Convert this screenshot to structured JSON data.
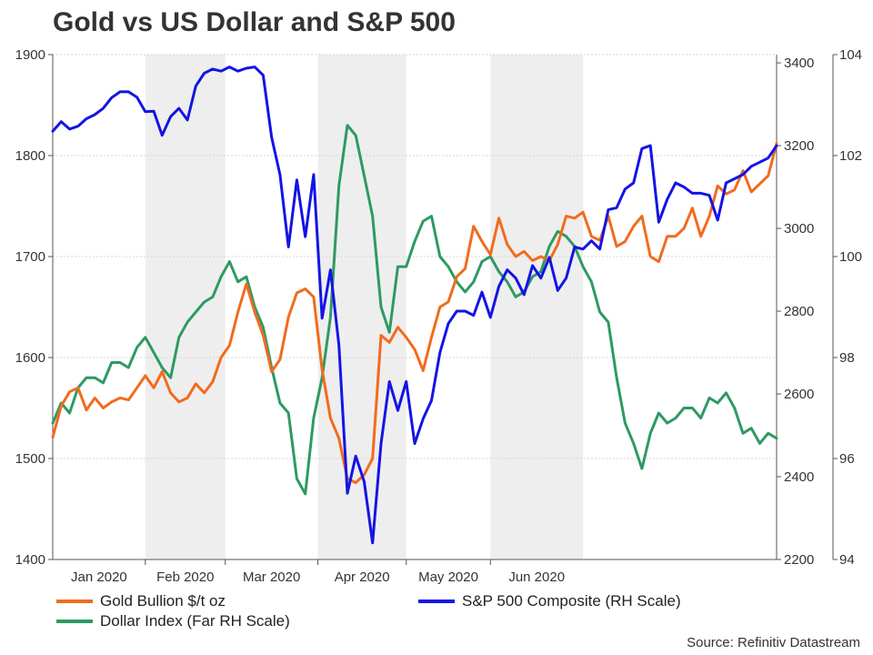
{
  "title": "Gold vs US Dollar and S&P 500",
  "source": "Source: Refinitiv Datastream",
  "colors": {
    "gold": "#f26b1d",
    "sp500": "#1414e6",
    "dollar": "#2e9a62",
    "shade": "#eeeeee",
    "grid": "#d6d6d6",
    "axis": "#555555"
  },
  "legend": [
    {
      "label": "Gold Bullion $/t oz",
      "series": "gold"
    },
    {
      "label": "S&P 500 Composite (RH Scale)",
      "series": "sp500"
    },
    {
      "label": "Dollar Index (Far RH Scale)",
      "series": "dollar"
    }
  ],
  "chart_data": {
    "type": "line",
    "x_unit": "trading day index (Jan 2 2020 = 0, Jun 30 2020 = 124)",
    "months": [
      "Jan 2020",
      "Feb 2020",
      "Mar 2020",
      "Apr 2020",
      "May 2020",
      "Jun 2020"
    ],
    "shaded_months": [
      "Feb 2020",
      "Apr 2020",
      "Jun 2020"
    ],
    "axes": {
      "left": {
        "min": 1400,
        "max": 1900,
        "ticks": [
          1400,
          1500,
          1600,
          1700,
          1800,
          1900
        ]
      },
      "right": {
        "min": 2200,
        "max": 3420,
        "ticks": [
          2200,
          2400,
          2600,
          2800,
          3000,
          3200,
          3400
        ]
      },
      "far_right": {
        "min": 94,
        "max": 104,
        "ticks": [
          94,
          96,
          98,
          100,
          102,
          104
        ]
      }
    },
    "grid": true,
    "series": [
      {
        "key": "gold",
        "name": "Gold Bullion $/t oz",
        "axis": "left",
        "values": [
          [
            0,
            1521
          ],
          [
            2,
            1552
          ],
          [
            4,
            1566
          ],
          [
            6,
            1570
          ],
          [
            8,
            1548
          ],
          [
            10,
            1560
          ],
          [
            12,
            1550
          ],
          [
            14,
            1556
          ],
          [
            16,
            1560
          ],
          [
            18,
            1558
          ],
          [
            20,
            1570
          ],
          [
            22,
            1582
          ],
          [
            24,
            1570
          ],
          [
            26,
            1586
          ],
          [
            28,
            1565
          ],
          [
            30,
            1556
          ],
          [
            32,
            1560
          ],
          [
            34,
            1574
          ],
          [
            36,
            1565
          ],
          [
            38,
            1576
          ],
          [
            40,
            1600
          ],
          [
            42,
            1612
          ],
          [
            44,
            1645
          ],
          [
            46,
            1673
          ],
          [
            48,
            1645
          ],
          [
            50,
            1622
          ],
          [
            52,
            1586
          ],
          [
            54,
            1598
          ],
          [
            56,
            1640
          ],
          [
            58,
            1664
          ],
          [
            60,
            1668
          ],
          [
            62,
            1660
          ],
          [
            64,
            1588
          ],
          [
            66,
            1540
          ],
          [
            68,
            1520
          ],
          [
            70,
            1480
          ],
          [
            72,
            1476
          ],
          [
            74,
            1484
          ],
          [
            76,
            1500
          ],
          [
            78,
            1622
          ],
          [
            80,
            1615
          ],
          [
            82,
            1630
          ],
          [
            84,
            1620
          ],
          [
            86,
            1608
          ],
          [
            88,
            1587
          ],
          [
            90,
            1620
          ],
          [
            92,
            1650
          ],
          [
            94,
            1655
          ],
          [
            96,
            1680
          ],
          [
            98,
            1688
          ],
          [
            100,
            1730
          ],
          [
            102,
            1715
          ],
          [
            104,
            1702
          ],
          [
            106,
            1738
          ],
          [
            108,
            1712
          ],
          [
            110,
            1700
          ],
          [
            112,
            1705
          ],
          [
            114,
            1696
          ],
          [
            116,
            1700
          ],
          [
            118,
            1696
          ],
          [
            120,
            1712
          ],
          [
            122,
            1740
          ],
          [
            124,
            1738
          ],
          [
            126,
            1744
          ],
          [
            128,
            1720
          ],
          [
            130,
            1716
          ],
          [
            132,
            1740
          ],
          [
            134,
            1710
          ],
          [
            136,
            1715
          ],
          [
            138,
            1730
          ],
          [
            140,
            1740
          ],
          [
            142,
            1700
          ],
          [
            144,
            1695
          ],
          [
            146,
            1720
          ],
          [
            148,
            1720
          ],
          [
            150,
            1728
          ],
          [
            152,
            1748
          ],
          [
            154,
            1720
          ],
          [
            156,
            1740
          ],
          [
            158,
            1770
          ],
          [
            160,
            1762
          ],
          [
            162,
            1766
          ],
          [
            164,
            1785
          ],
          [
            166,
            1764
          ],
          [
            168,
            1772
          ],
          [
            170,
            1780
          ],
          [
            172,
            1812
          ]
        ]
      },
      {
        "key": "sp500",
        "name": "S&P 500 Composite (RH Scale)",
        "axis": "right",
        "values": [
          [
            0,
            3235
          ],
          [
            2,
            3258
          ],
          [
            4,
            3240
          ],
          [
            6,
            3247
          ],
          [
            8,
            3265
          ],
          [
            10,
            3275
          ],
          [
            12,
            3290
          ],
          [
            14,
            3316
          ],
          [
            16,
            3330
          ],
          [
            18,
            3330
          ],
          [
            20,
            3317
          ],
          [
            22,
            3282
          ],
          [
            24,
            3283
          ],
          [
            26,
            3225
          ],
          [
            28,
            3270
          ],
          [
            30,
            3290
          ],
          [
            32,
            3262
          ],
          [
            34,
            3344
          ],
          [
            36,
            3375
          ],
          [
            38,
            3385
          ],
          [
            40,
            3380
          ],
          [
            42,
            3390
          ],
          [
            44,
            3380
          ],
          [
            46,
            3387
          ],
          [
            48,
            3390
          ],
          [
            50,
            3370
          ],
          [
            52,
            3220
          ],
          [
            54,
            3130
          ],
          [
            56,
            2955
          ],
          [
            58,
            3117
          ],
          [
            60,
            2980
          ],
          [
            62,
            3130
          ],
          [
            64,
            2783
          ],
          [
            66,
            2900
          ],
          [
            68,
            2718
          ],
          [
            70,
            2360
          ],
          [
            72,
            2450
          ],
          [
            74,
            2388
          ],
          [
            76,
            2240
          ],
          [
            78,
            2480
          ],
          [
            80,
            2630
          ],
          [
            82,
            2560
          ],
          [
            84,
            2630
          ],
          [
            86,
            2480
          ],
          [
            88,
            2540
          ],
          [
            90,
            2584
          ],
          [
            92,
            2700
          ],
          [
            94,
            2770
          ],
          [
            96,
            2800
          ],
          [
            98,
            2800
          ],
          [
            100,
            2790
          ],
          [
            102,
            2846
          ],
          [
            104,
            2785
          ],
          [
            106,
            2860
          ],
          [
            108,
            2900
          ],
          [
            110,
            2880
          ],
          [
            112,
            2840
          ],
          [
            114,
            2910
          ],
          [
            116,
            2880
          ],
          [
            118,
            2930
          ],
          [
            120,
            2850
          ],
          [
            122,
            2880
          ],
          [
            124,
            2955
          ],
          [
            126,
            2950
          ],
          [
            128,
            2970
          ],
          [
            130,
            2950
          ],
          [
            132,
            3045
          ],
          [
            134,
            3050
          ],
          [
            136,
            3095
          ],
          [
            138,
            3110
          ],
          [
            140,
            3193
          ],
          [
            142,
            3200
          ],
          [
            144,
            3015
          ],
          [
            146,
            3070
          ],
          [
            148,
            3110
          ],
          [
            150,
            3100
          ],
          [
            152,
            3085
          ],
          [
            154,
            3085
          ],
          [
            156,
            3080
          ],
          [
            158,
            3020
          ],
          [
            160,
            3110
          ],
          [
            162,
            3120
          ],
          [
            164,
            3130
          ],
          [
            166,
            3150
          ],
          [
            168,
            3160
          ],
          [
            170,
            3170
          ],
          [
            172,
            3200
          ]
        ]
      },
      {
        "key": "dollar",
        "name": "Dollar Index (Far RH Scale)",
        "axis": "far_right",
        "values": [
          [
            0,
            96.7
          ],
          [
            2,
            97.1
          ],
          [
            4,
            96.9
          ],
          [
            6,
            97.4
          ],
          [
            8,
            97.6
          ],
          [
            10,
            97.6
          ],
          [
            12,
            97.5
          ],
          [
            14,
            97.9
          ],
          [
            16,
            97.9
          ],
          [
            18,
            97.8
          ],
          [
            20,
            98.2
          ],
          [
            22,
            98.4
          ],
          [
            24,
            98.1
          ],
          [
            26,
            97.8
          ],
          [
            28,
            97.6
          ],
          [
            30,
            98.4
          ],
          [
            32,
            98.7
          ],
          [
            34,
            98.9
          ],
          [
            36,
            99.1
          ],
          [
            38,
            99.2
          ],
          [
            40,
            99.6
          ],
          [
            42,
            99.9
          ],
          [
            44,
            99.5
          ],
          [
            46,
            99.6
          ],
          [
            48,
            99.0
          ],
          [
            50,
            98.6
          ],
          [
            52,
            97.8
          ],
          [
            54,
            97.1
          ],
          [
            56,
            96.9
          ],
          [
            58,
            95.6
          ],
          [
            60,
            95.3
          ],
          [
            62,
            96.8
          ],
          [
            64,
            97.6
          ],
          [
            66,
            98.8
          ],
          [
            68,
            101.4
          ],
          [
            70,
            102.6
          ],
          [
            72,
            102.4
          ],
          [
            74,
            101.6
          ],
          [
            76,
            100.8
          ],
          [
            78,
            99.0
          ],
          [
            80,
            98.5
          ],
          [
            82,
            99.8
          ],
          [
            84,
            99.8
          ],
          [
            86,
            100.3
          ],
          [
            88,
            100.7
          ],
          [
            90,
            100.8
          ],
          [
            92,
            100.0
          ],
          [
            94,
            99.8
          ],
          [
            96,
            99.5
          ],
          [
            98,
            99.3
          ],
          [
            100,
            99.5
          ],
          [
            102,
            99.9
          ],
          [
            104,
            100.0
          ],
          [
            106,
            99.7
          ],
          [
            108,
            99.5
          ],
          [
            110,
            99.2
          ],
          [
            112,
            99.3
          ],
          [
            114,
            99.6
          ],
          [
            116,
            99.7
          ],
          [
            118,
            100.2
          ],
          [
            120,
            100.5
          ],
          [
            122,
            100.4
          ],
          [
            124,
            100.2
          ],
          [
            126,
            99.8
          ],
          [
            128,
            99.5
          ],
          [
            130,
            98.9
          ],
          [
            132,
            98.7
          ],
          [
            134,
            97.6
          ],
          [
            136,
            96.7
          ],
          [
            138,
            96.3
          ],
          [
            140,
            95.8
          ],
          [
            142,
            96.5
          ],
          [
            144,
            96.9
          ],
          [
            146,
            96.7
          ],
          [
            148,
            96.8
          ],
          [
            150,
            97.0
          ],
          [
            152,
            97.0
          ],
          [
            154,
            96.8
          ],
          [
            156,
            97.2
          ],
          [
            158,
            97.1
          ],
          [
            160,
            97.3
          ],
          [
            162,
            97.0
          ],
          [
            164,
            96.5
          ],
          [
            166,
            96.6
          ],
          [
            168,
            96.3
          ],
          [
            170,
            96.5
          ],
          [
            172,
            96.4
          ]
        ]
      }
    ]
  }
}
